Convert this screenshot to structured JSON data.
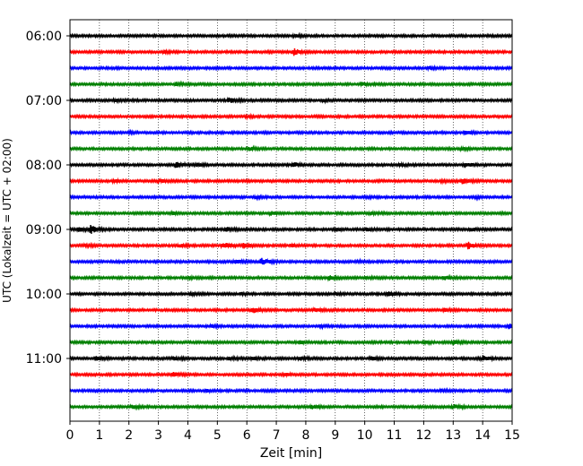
{
  "chart_data": {
    "type": "line",
    "subtype": "helicorder",
    "title": "",
    "xlabel": "Zeit  [min]",
    "ylabel": "UTC (Lokalzeit = UTC + 02:00)",
    "xlim": [
      0,
      15
    ],
    "xticks": [
      "0",
      "1",
      "2",
      "3",
      "4",
      "5",
      "6",
      "7",
      "8",
      "9",
      "10",
      "11",
      "12",
      "13",
      "14",
      "15"
    ],
    "xgrid": "dotted vertical lines at each minute",
    "y_start_label": "06:00",
    "trace_interval_minutes": 15,
    "ytick_labels": [
      "06:00",
      "07:00",
      "08:00",
      "09:00",
      "10:00",
      "11:00"
    ],
    "legend": "none",
    "trace_colors": [
      "#000000",
      "#ff0000",
      "#0000ff",
      "#008000"
    ],
    "traces": [
      {
        "start": "06:00",
        "events": [
          [
            7.6,
            1.0
          ]
        ]
      },
      {
        "start": "06:15",
        "events": [
          [
            3.2,
            1.2
          ],
          [
            7.6,
            3.2
          ]
        ]
      },
      {
        "start": "06:30",
        "events": [
          [
            12.2,
            1.4
          ]
        ]
      },
      {
        "start": "06:45",
        "events": [
          [
            3.6,
            1.6
          ],
          [
            9.9,
            1.4
          ]
        ]
      },
      {
        "start": "07:00",
        "events": [
          [
            5.4,
            2.2
          ],
          [
            1.5,
            1.0
          ],
          [
            8.6,
            1.0
          ]
        ]
      },
      {
        "start": "07:15",
        "events": [
          [
            6.0,
            0.8
          ]
        ]
      },
      {
        "start": "07:30",
        "events": [
          [
            13.4,
            2.2
          ],
          [
            2.0,
            0.8
          ]
        ]
      },
      {
        "start": "07:45",
        "events": [
          [
            6.1,
            1.4
          ],
          [
            13.3,
            1.0
          ]
        ]
      },
      {
        "start": "08:00",
        "events": [
          [
            3.6,
            2.8
          ],
          [
            7.6,
            2.4
          ],
          [
            13.4,
            2.6
          ],
          [
            4.3,
            1.2
          ],
          [
            11.2,
            1.2
          ]
        ]
      },
      {
        "start": "08:15",
        "events": [
          [
            13.3,
            2.6
          ],
          [
            3.0,
            1.6
          ],
          [
            1.5,
            1.2
          ],
          [
            12.6,
            1.0
          ]
        ]
      },
      {
        "start": "08:30",
        "events": [
          [
            6.3,
            1.0
          ],
          [
            10.0,
            1.0
          ],
          [
            13.8,
            0.9
          ]
        ]
      },
      {
        "start": "08:45",
        "events": [
          [
            6.8,
            1.6
          ],
          [
            3.5,
            1.0
          ],
          [
            10.2,
            1.0
          ]
        ]
      },
      {
        "start": "09:00",
        "events": [
          [
            0.7,
            4.0
          ],
          [
            0.3,
            1.8
          ],
          [
            5.3,
            2.2
          ],
          [
            9.0,
            1.4
          ],
          [
            10.0,
            1.8
          ],
          [
            13.6,
            1.2
          ]
        ]
      },
      {
        "start": "09:15",
        "events": [
          [
            5.2,
            3.6
          ],
          [
            5.9,
            2.8
          ],
          [
            13.5,
            3.6
          ],
          [
            0.5,
            1.4
          ],
          [
            7.5,
            1.2
          ],
          [
            3.7,
            1.2
          ]
        ]
      },
      {
        "start": "09:30",
        "events": [
          [
            6.5,
            4.0
          ],
          [
            5.6,
            2.0
          ],
          [
            9.8,
            1.0
          ]
        ]
      },
      {
        "start": "09:45",
        "events": [
          [
            8.8,
            2.2
          ],
          [
            12.7,
            1.6
          ],
          [
            10.0,
            1.0
          ],
          [
            4.0,
            0.8
          ]
        ]
      },
      {
        "start": "10:00",
        "events": [
          [
            10.8,
            2.2
          ],
          [
            4.1,
            1.0
          ],
          [
            5.8,
            1.0
          ],
          [
            9.0,
            0.8
          ]
        ]
      },
      {
        "start": "10:15",
        "events": [
          [
            6.2,
            2.6
          ],
          [
            8.3,
            2.0
          ],
          [
            12.7,
            1.2
          ]
        ]
      },
      {
        "start": "10:30",
        "events": [
          [
            14.9,
            2.6
          ],
          [
            4.8,
            1.0
          ],
          [
            8.5,
            0.9
          ]
        ]
      },
      {
        "start": "10:45",
        "events": [
          [
            13.0,
            1.8
          ],
          [
            7.8,
            1.4
          ],
          [
            12.0,
            1.0
          ]
        ]
      },
      {
        "start": "11:00",
        "events": [
          [
            0.9,
            2.4
          ],
          [
            3.5,
            1.6
          ],
          [
            5.4,
            1.4
          ],
          [
            6.2,
            1.4
          ],
          [
            7.8,
            1.8
          ],
          [
            10.2,
            1.8
          ],
          [
            14.0,
            2.6
          ]
        ]
      },
      {
        "start": "11:15",
        "events": [
          [
            3.5,
            2.2
          ],
          [
            7.3,
            1.0
          ]
        ]
      },
      {
        "start": "11:30",
        "events": [
          [
            4.6,
            1.0
          ],
          [
            12.6,
            1.0
          ]
        ]
      },
      {
        "start": "11:45",
        "events": [
          [
            2.1,
            1.2
          ],
          [
            8.2,
            1.8
          ],
          [
            13.0,
            2.2
          ]
        ]
      }
    ]
  }
}
